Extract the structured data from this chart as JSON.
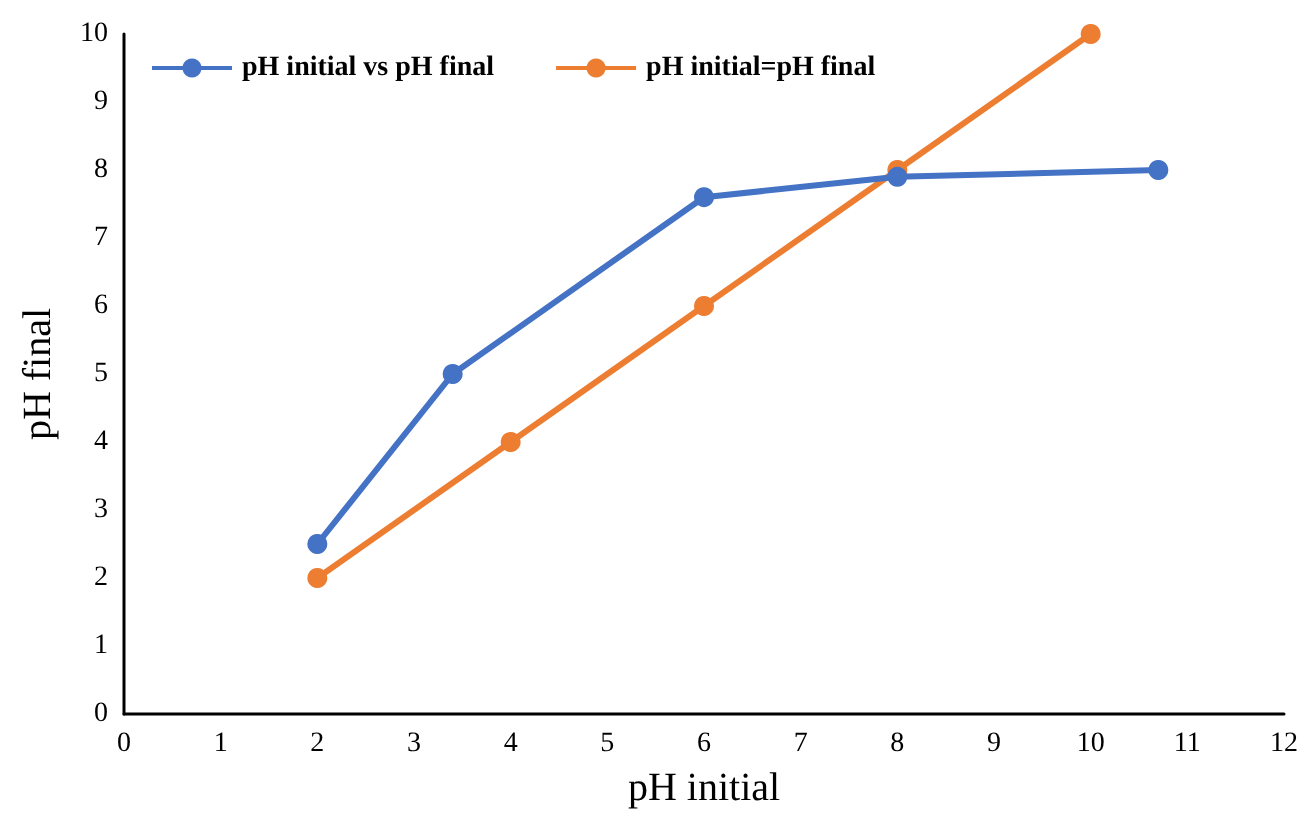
{
  "chart_data": {
    "type": "line",
    "xlabel": "pH initial",
    "ylabel": "pH final",
    "xlim": [
      0,
      12
    ],
    "xticks": [
      0,
      1,
      2,
      3,
      4,
      5,
      6,
      7,
      8,
      9,
      10,
      11,
      12
    ],
    "ylim": [
      0,
      10
    ],
    "yticks": [
      0,
      1,
      2,
      3,
      4,
      5,
      6,
      7,
      8,
      9,
      10
    ],
    "grid": false,
    "legend": "top left",
    "marker": "circle",
    "line_style": "solid",
    "series": [
      {
        "name": "pH initial vs pH final",
        "color": "#4472c4",
        "x": [
          2,
          3.4,
          6,
          8,
          10.7
        ],
        "values": [
          2.5,
          5,
          7.6,
          7.9,
          8
        ]
      },
      {
        "name": "pH initial=pH final",
        "color": "#ed7d31",
        "x": [
          2,
          4,
          6,
          8,
          10
        ],
        "values": [
          2,
          4,
          6,
          8,
          10
        ]
      }
    ]
  }
}
